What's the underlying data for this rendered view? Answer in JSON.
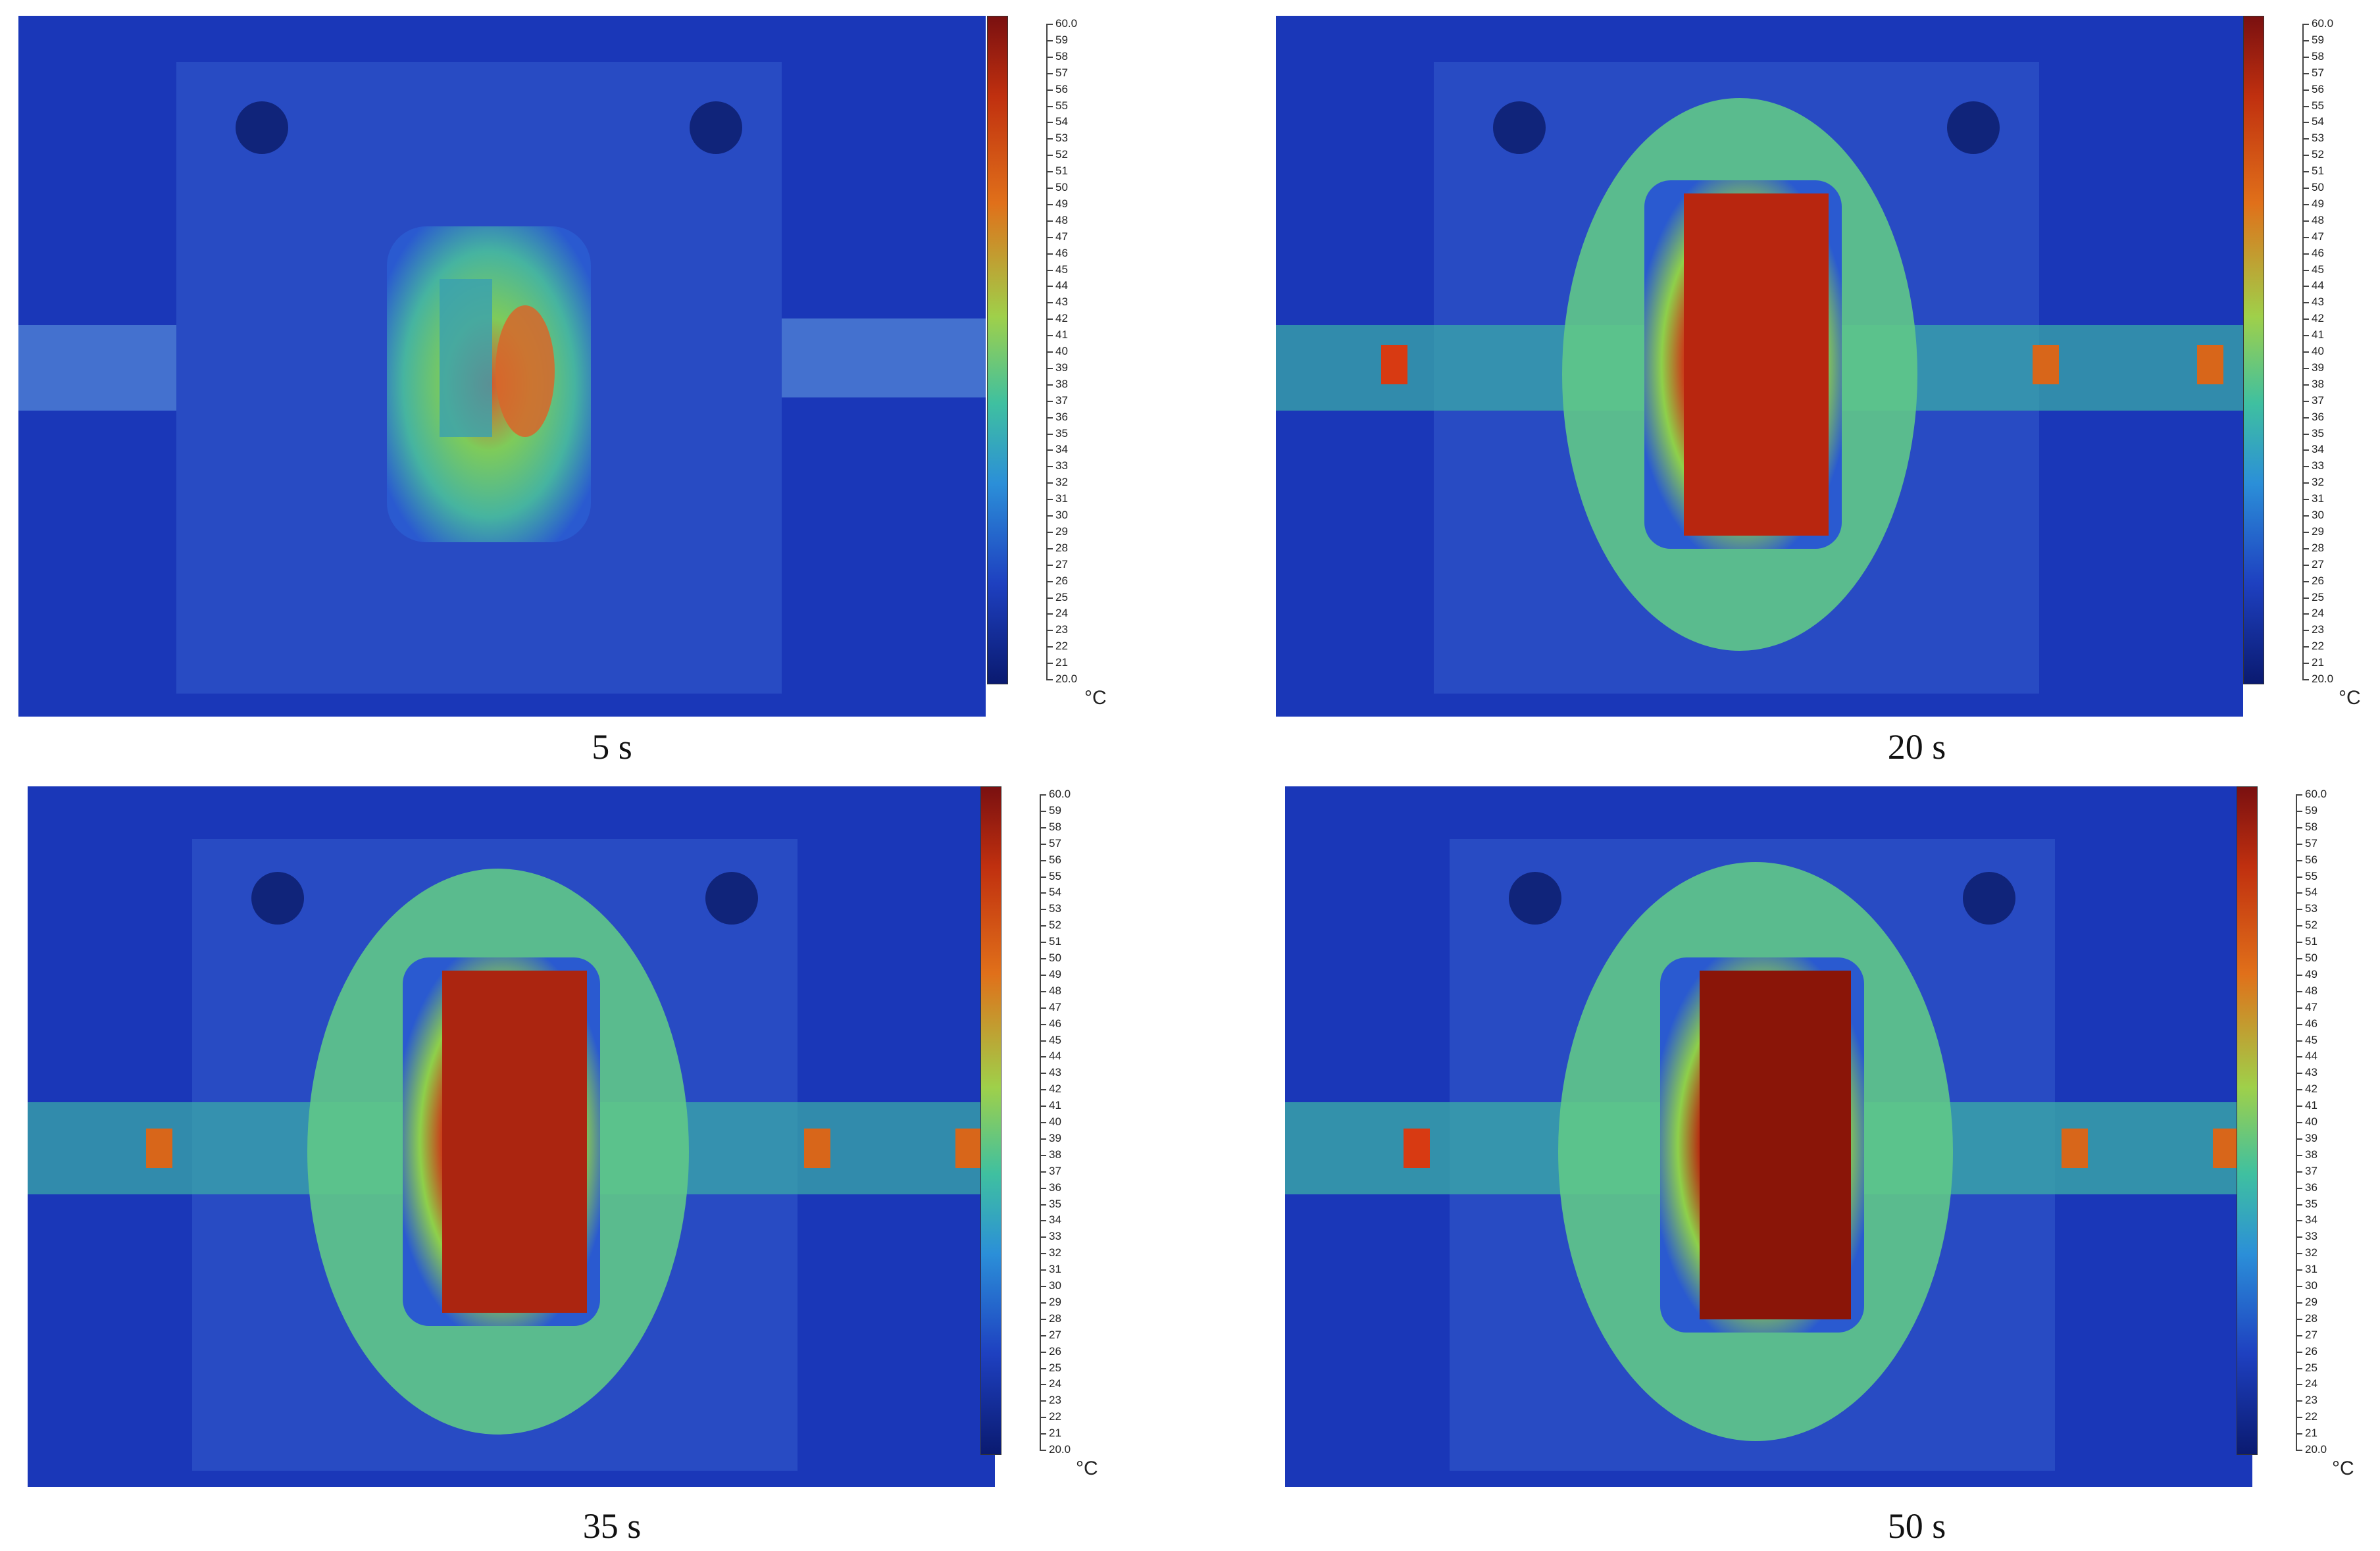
{
  "colors": {
    "background": "#1a37b8",
    "cold": "#1e3fbf",
    "warm_mid": "#4ad08a",
    "hot": "#b8260f",
    "hottest": "#8a1508"
  },
  "scale": {
    "unit": "°C",
    "min_label": "20.0",
    "max_label": "60.0",
    "ticks": [
      "60.0",
      "59",
      "58",
      "57",
      "56",
      "55",
      "54",
      "53",
      "52",
      "51",
      "50",
      "49",
      "48",
      "47",
      "46",
      "45",
      "44",
      "43",
      "42",
      "41",
      "40",
      "39",
      "38",
      "37",
      "36",
      "35",
      "34",
      "33",
      "32",
      "31",
      "30",
      "29",
      "28",
      "27",
      "26",
      "25",
      "24",
      "23",
      "22",
      "21",
      "20.0"
    ]
  },
  "panels": [
    {
      "caption": "5 s",
      "max_temp_c": 45,
      "heat": 0.45
    },
    {
      "caption": "20 s",
      "max_temp_c": 58,
      "heat": 0.85
    },
    {
      "caption": "35 s",
      "max_temp_c": 58,
      "heat": 0.9
    },
    {
      "caption": "50 s",
      "max_temp_c": 60,
      "heat": 1.0
    }
  ]
}
